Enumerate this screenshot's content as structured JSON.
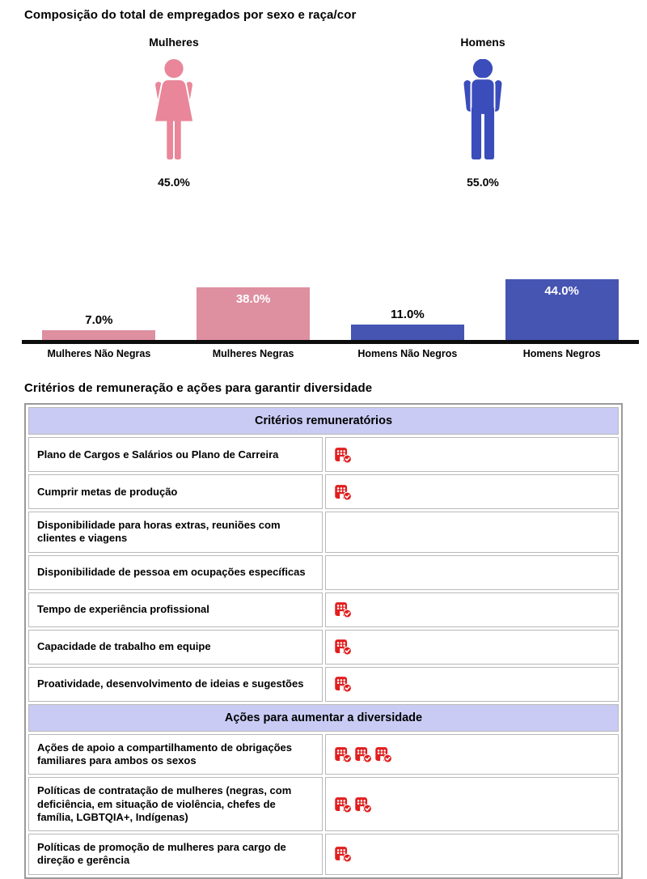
{
  "header": {
    "title": "Composição do total de empregados por sexo e raça/cor"
  },
  "gender_summary": {
    "female": {
      "label": "Mulheres",
      "value": "45.0%",
      "color": "#e98699"
    },
    "male": {
      "label": "Homens",
      "value": "55.0%",
      "color": "#3b4cbb"
    }
  },
  "chart_data": {
    "type": "bar",
    "categories": [
      "Mulheres Não Negras",
      "Mulheres Negras",
      "Homens Não Negros",
      "Homens Negros"
    ],
    "values": [
      7.0,
      38.0,
      11.0,
      44.0
    ],
    "value_labels": [
      "7.0%",
      "38.0%",
      "11.0%",
      "44.0%"
    ],
    "bar_colors": [
      "#de8fa0",
      "#de8fa0",
      "#4654b2",
      "#4654b2"
    ],
    "dotted_texture": [
      true,
      true,
      false,
      false
    ],
    "ylim": [
      0,
      50
    ],
    "axis_color": "#0d0d0d",
    "label_inside_threshold": 20,
    "legend": "none",
    "grid": false
  },
  "section2": {
    "title": "Critérios de remuneração e ações para garantir diversidade"
  },
  "table": {
    "header_bg": "#c9cbf4",
    "icon_color": "#e01f1f",
    "icon_name": "company-check-icon",
    "sections": [
      {
        "header": "Critérios remuneratórios",
        "rows": [
          {
            "label": "Plano de Cargos e Salários ou Plano de Carreira",
            "icon_count": 1
          },
          {
            "label": "Cumprir metas de produção",
            "icon_count": 1
          },
          {
            "label": "Disponibilidade para horas extras, reuniões com clientes e viagens",
            "icon_count": 0
          },
          {
            "label": "Disponibilidade de pessoa em ocupações específicas",
            "icon_count": 0
          },
          {
            "label": "Tempo de experiência profissional",
            "icon_count": 1
          },
          {
            "label": "Capacidade de trabalho em equipe",
            "icon_count": 1
          },
          {
            "label": "Proatividade, desenvolvimento de ideias e sugestões",
            "icon_count": 1
          }
        ]
      },
      {
        "header": "Ações para aumentar a diversidade",
        "rows": [
          {
            "label": "Ações de apoio a compartilhamento de obrigações familiares para ambos os sexos",
            "icon_count": 3
          },
          {
            "label": "Políticas de contratação de mulheres (negras, com deficiência, em situação de violência, chefes de família, LGBTQIA+, Indígenas)",
            "icon_count": 2
          },
          {
            "label": "Políticas de promoção de mulheres para cargo de direção e gerência",
            "icon_count": 1
          }
        ]
      }
    ]
  }
}
